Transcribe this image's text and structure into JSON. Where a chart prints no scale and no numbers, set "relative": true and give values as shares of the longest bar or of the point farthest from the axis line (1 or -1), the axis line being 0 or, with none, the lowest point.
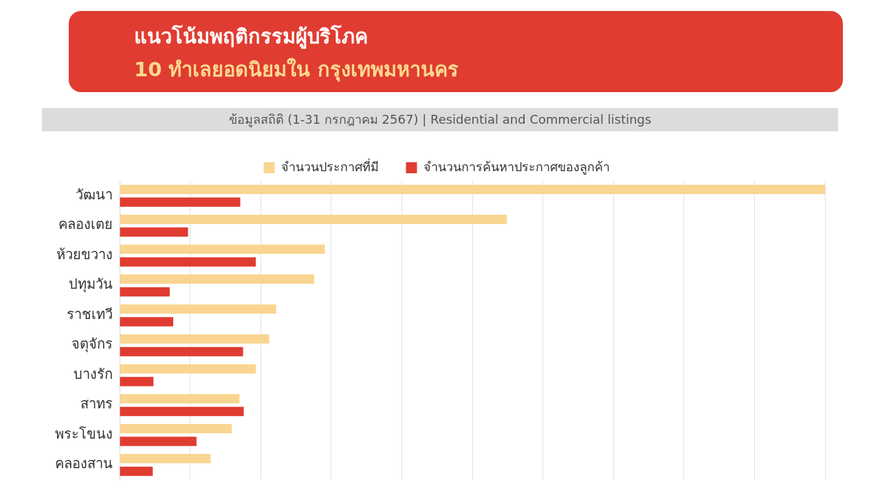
{
  "chart_data": {
    "type": "bar",
    "orientation": "horizontal",
    "relative": true,
    "title": "แนวโน้มพฤติกรรมผู้บริโภค",
    "subtitle": "10 ทำเลยอดนิยมใน กรุงเทพมหานคร",
    "annotations": [
      "ข้อมูลสถิติ (1-31 กรกฎาคม 2567) | Residential and Commercial listings"
    ],
    "categories": [
      "วัฒนา",
      "คลองเตย",
      "ห้วยขวาง",
      "ปทุมวัน",
      "ราชเทวี",
      "จตุจักร",
      "บางรัก",
      "สาทร",
      "พระโขนง",
      "คลองสาน"
    ],
    "series": [
      {
        "name": "จำนวนประกาศที่มี",
        "color": "#f9d591",
        "values": [
          1.0,
          0.549,
          0.291,
          0.276,
          0.222,
          0.212,
          0.193,
          0.17,
          0.159,
          0.129
        ]
      },
      {
        "name": "จำนวนการค้นหาประกาศของลูกค้า",
        "color": "#e03c31",
        "values": [
          0.171,
          0.097,
          0.193,
          0.071,
          0.076,
          0.175,
          0.048,
          0.176,
          0.109,
          0.047
        ]
      }
    ],
    "grid": "x",
    "legend": "top"
  }
}
